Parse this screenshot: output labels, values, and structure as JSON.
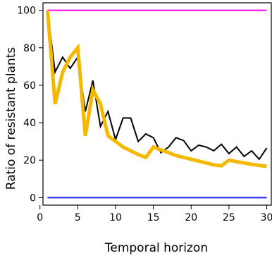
{
  "chart_data": {
    "type": "line",
    "title": "",
    "xlabel": "Temporal horizon",
    "ylabel": "Ratio of resistant plants",
    "xlim": [
      0.4,
      30.6
    ],
    "ylim": [
      -4,
      104
    ],
    "xticks": [
      0,
      5,
      10,
      15,
      20,
      25,
      30
    ],
    "yticks": [
      0,
      20,
      40,
      60,
      80,
      100
    ],
    "grid": false,
    "legend": "none",
    "series": [
      {
        "color": "#ff00ff",
        "x": [
          1,
          30
        ],
        "y": [
          100,
          100
        ]
      },
      {
        "color": "#1a1aff",
        "x": [
          1,
          30
        ],
        "y": [
          0,
          0
        ]
      },
      {
        "color": "#000000",
        "x": [
          1,
          2,
          3,
          4,
          5,
          6,
          7,
          8,
          9,
          10,
          11,
          12,
          13,
          14,
          15,
          16,
          17,
          18,
          19,
          20,
          21,
          22,
          23,
          24,
          25,
          26,
          27,
          28,
          29,
          30
        ],
        "y": [
          100,
          67,
          75,
          69,
          75,
          46,
          62.5,
          38,
          46,
          31,
          42.5,
          42.5,
          30,
          34,
          32,
          24,
          27,
          32,
          30.5,
          25,
          28,
          27,
          25,
          28.5,
          23.5,
          27,
          22,
          25,
          20.5,
          26.5
        ]
      },
      {
        "color": "#f5b800",
        "x": [
          1,
          2,
          3,
          4,
          5,
          6,
          7,
          8,
          9,
          10,
          11,
          12,
          13,
          14,
          15,
          16,
          17,
          18,
          19,
          20,
          21,
          22,
          23,
          24,
          25,
          26,
          27,
          28,
          29,
          30
        ],
        "y": [
          100,
          50,
          67,
          75,
          80,
          33,
          57.5,
          50,
          33,
          30,
          27,
          25,
          23,
          21.5,
          27,
          25.5,
          24,
          22.5,
          21.5,
          20.5,
          19.5,
          18.5,
          17.5,
          17,
          20,
          19.2,
          18.5,
          17.8,
          17.2,
          16.7
        ]
      }
    ]
  }
}
